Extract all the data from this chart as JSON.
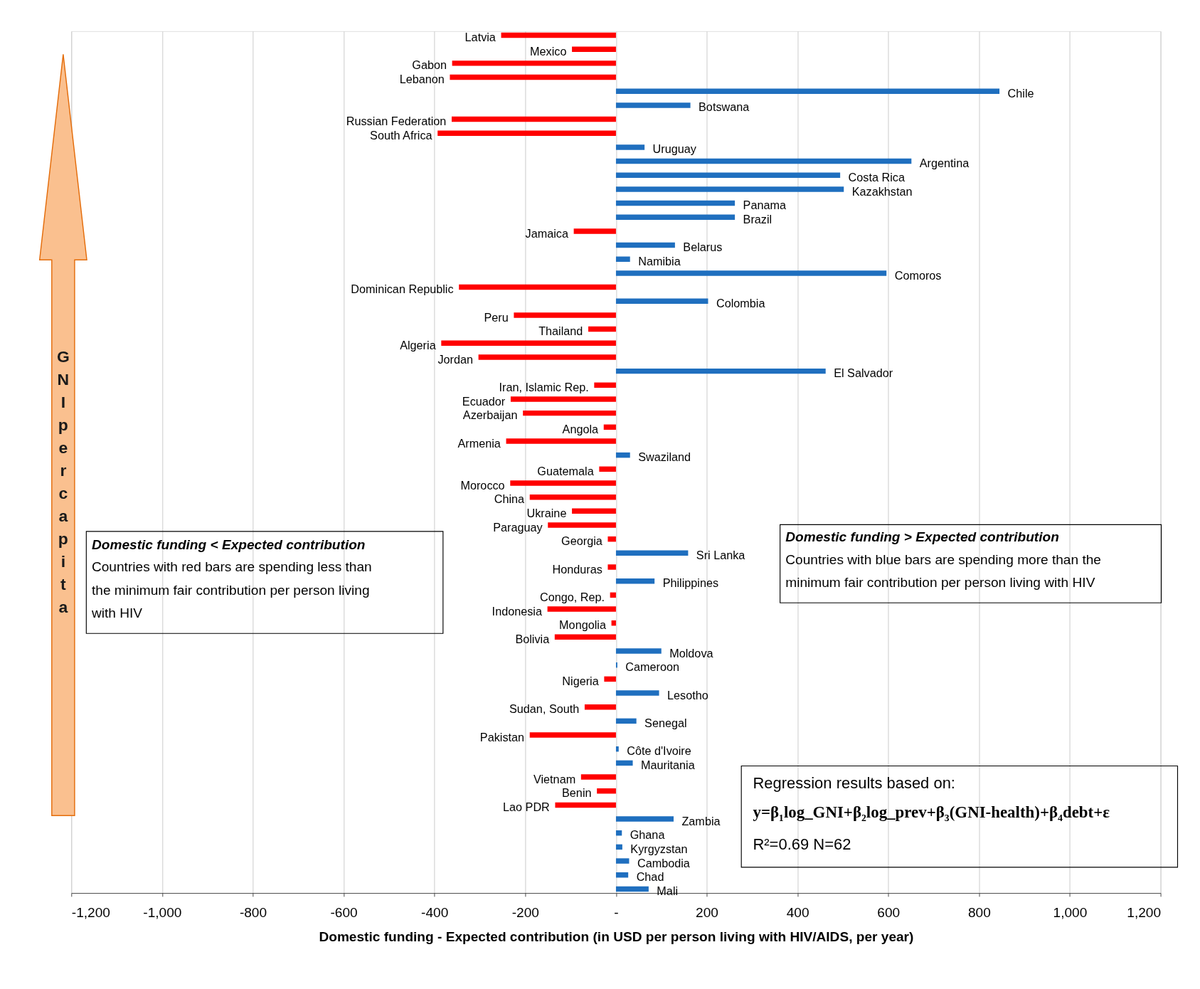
{
  "chart_data": {
    "type": "bar",
    "orientation": "horizontal",
    "xlabel": "Domestic funding - Expected contribution (in USD per person living with HIV/AIDS, per year)",
    "categories": [
      "Latvia",
      "Mexico",
      "Gabon",
      "Lebanon",
      "Chile",
      "Botswana",
      "Russian Federation",
      "South Africa",
      "Uruguay",
      "Argentina",
      "Costa Rica",
      "Kazakhstan",
      "Panama",
      "Brazil",
      "Jamaica",
      "Belarus",
      "Namibia",
      "Comoros",
      "Dominican Republic",
      "Colombia",
      "Peru",
      "Thailand",
      "Algeria",
      "Jordan",
      "El Salvador",
      "Iran, Islamic Rep.",
      "Ecuador",
      "Azerbaijan",
      "Angola",
      "Armenia",
      "Swaziland",
      "Guatemala",
      "Morocco",
      "China",
      "Ukraine",
      "Paraguay",
      "Georgia",
      "Sri Lanka",
      "Honduras",
      "Philippines",
      "Congo, Rep.",
      "Indonesia",
      "Mongolia",
      "Bolivia",
      "Moldova",
      "Cameroon",
      "Nigeria",
      "Lesotho",
      "Sudan, South",
      "Senegal",
      "Pakistan",
      "Côte d'Ivoire",
      "Mauritania",
      "Vietnam",
      "Benin",
      "Lao PDR",
      "Zambia",
      "Ghana",
      "Kyrgyzstan",
      "Cambodia",
      "Chad",
      "Mali"
    ],
    "values": [
      -253,
      -97,
      -361,
      -366,
      845,
      164,
      -362,
      -393,
      63,
      651,
      494,
      502,
      262,
      262,
      -93,
      130,
      31,
      596,
      -346,
      203,
      -225,
      -61,
      -385,
      -303,
      462,
      -48,
      -232,
      -205,
      -27,
      -242,
      31,
      -37,
      -233,
      -190,
      -97,
      -150,
      -18,
      159,
      -18,
      85,
      -13,
      -151,
      -10,
      -135,
      100,
      3,
      -26,
      95,
      -69,
      45,
      -190,
      6,
      37,
      -77,
      -42,
      -134,
      127,
      13,
      14,
      29,
      27,
      72
    ],
    "colors": [
      "#ff0000",
      "#ff0000",
      "#ff0000",
      "#ff0000",
      "#1f6fbf",
      "#1f6fbf",
      "#ff0000",
      "#ff0000",
      "#1f6fbf",
      "#1f6fbf",
      "#1f6fbf",
      "#1f6fbf",
      "#1f6fbf",
      "#1f6fbf",
      "#ff0000",
      "#1f6fbf",
      "#1f6fbf",
      "#1f6fbf",
      "#ff0000",
      "#1f6fbf",
      "#ff0000",
      "#ff0000",
      "#ff0000",
      "#ff0000",
      "#1f6fbf",
      "#ff0000",
      "#ff0000",
      "#ff0000",
      "#ff0000",
      "#ff0000",
      "#1f6fbf",
      "#ff0000",
      "#ff0000",
      "#ff0000",
      "#ff0000",
      "#ff0000",
      "#ff0000",
      "#1f6fbf",
      "#ff0000",
      "#1f6fbf",
      "#ff0000",
      "#ff0000",
      "#ff0000",
      "#ff0000",
      "#1f6fbf",
      "#1f6fbf",
      "#ff0000",
      "#1f6fbf",
      "#ff0000",
      "#1f6fbf",
      "#ff0000",
      "#1f6fbf",
      "#1f6fbf",
      "#ff0000",
      "#ff0000",
      "#ff0000",
      "#1f6fbf",
      "#1f6fbf",
      "#1f6fbf",
      "#1f6fbf",
      "#1f6fbf",
      "#1f6fbf"
    ],
    "xlim": [
      -1200,
      1200
    ],
    "xticks": [
      {
        "value": -1200,
        "label": "-1,200"
      },
      {
        "value": -1000,
        "label": "-1,000"
      },
      {
        "value": -800,
        "label": "-800"
      },
      {
        "value": -600,
        "label": "-600"
      },
      {
        "value": -400,
        "label": "-400"
      },
      {
        "value": -200,
        "label": "-200"
      },
      {
        "value": 0,
        "label": "-"
      },
      {
        "value": 200,
        "label": "200"
      },
      {
        "value": 400,
        "label": "400"
      },
      {
        "value": 600,
        "label": "600"
      },
      {
        "value": 800,
        "label": "800"
      },
      {
        "value": 1000,
        "label": "1,000"
      },
      {
        "value": 1200,
        "label": "1,200"
      }
    ],
    "grid": "x",
    "annotations": [
      "GNI per capita",
      "Domestic funding  < Expected contribution",
      "Countries with red bars are spending  less than the minimum fair contribution  per person living with HIV",
      "Domestic funding  > Expected contribution",
      "Countries with blue bars are spending  more than the minimum fair contribution  per person living with HIV",
      "Regression results based on:",
      "y=β₁log_GNI+β₂log_prev+β₃(GNI-health)+β₄debt+ε",
      "R²=0.69   N=62"
    ]
  }
}
